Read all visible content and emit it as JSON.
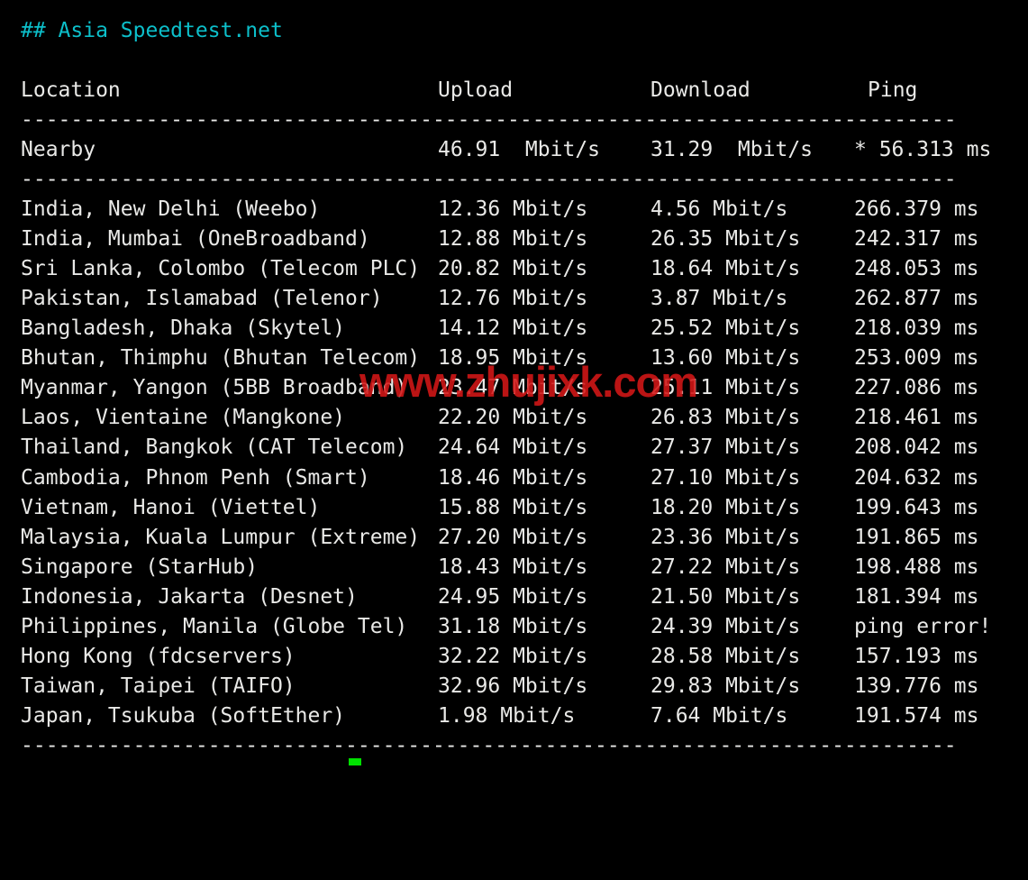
{
  "title": "## Asia Speedtest.net",
  "table": {
    "headers": {
      "location": "Location",
      "upload": "Upload",
      "download": "Download",
      "ping": "Ping"
    },
    "separator": "---------------------------------------------------------------------------",
    "nearby": {
      "location": "Nearby",
      "upload": "46.91  Mbit/s",
      "download": "31.29  Mbit/s",
      "ping": "* 56.313 ms"
    },
    "rows": [
      {
        "location": "India, New Delhi (Weebo)",
        "upload": "12.36 Mbit/s",
        "download": "4.56 Mbit/s",
        "ping": "266.379 ms"
      },
      {
        "location": "India, Mumbai (OneBroadband)",
        "upload": "12.88 Mbit/s",
        "download": "26.35 Mbit/s",
        "ping": "242.317 ms"
      },
      {
        "location": "Sri Lanka, Colombo (Telecom PLC)",
        "upload": "20.82 Mbit/s",
        "download": "18.64 Mbit/s",
        "ping": "248.053 ms"
      },
      {
        "location": "Pakistan, Islamabad (Telenor)",
        "upload": "12.76 Mbit/s",
        "download": "3.87 Mbit/s",
        "ping": "262.877 ms"
      },
      {
        "location": "Bangladesh, Dhaka (Skytel)",
        "upload": "14.12 Mbit/s",
        "download": "25.52 Mbit/s",
        "ping": "218.039 ms"
      },
      {
        "location": "Bhutan, Thimphu (Bhutan Telecom)",
        "upload": "18.95 Mbit/s",
        "download": "13.60 Mbit/s",
        "ping": "253.009 ms"
      },
      {
        "location": "Myanmar, Yangon (5BB Broadband)",
        "upload": "23.47 Mbit/s",
        "download": "25.11 Mbit/s",
        "ping": "227.086 ms"
      },
      {
        "location": "Laos, Vientaine (Mangkone)",
        "upload": "22.20 Mbit/s",
        "download": "26.83 Mbit/s",
        "ping": "218.461 ms"
      },
      {
        "location": "Thailand, Bangkok (CAT Telecom)",
        "upload": "24.64 Mbit/s",
        "download": "27.37 Mbit/s",
        "ping": "208.042 ms"
      },
      {
        "location": "Cambodia, Phnom Penh (Smart)",
        "upload": "18.46 Mbit/s",
        "download": "27.10 Mbit/s",
        "ping": "204.632 ms"
      },
      {
        "location": "Vietnam, Hanoi (Viettel)",
        "upload": "15.88 Mbit/s",
        "download": "18.20 Mbit/s",
        "ping": "199.643 ms"
      },
      {
        "location": "Malaysia, Kuala Lumpur (Extreme)",
        "upload": "27.20 Mbit/s",
        "download": "23.36 Mbit/s",
        "ping": "191.865 ms"
      },
      {
        "location": "Singapore (StarHub)",
        "upload": "18.43 Mbit/s",
        "download": "27.22 Mbit/s",
        "ping": "198.488 ms"
      },
      {
        "location": "Indonesia, Jakarta (Desnet)",
        "upload": "24.95 Mbit/s",
        "download": "21.50 Mbit/s",
        "ping": "181.394 ms"
      },
      {
        "location": "Philippines, Manila (Globe Tel)",
        "upload": "31.18 Mbit/s",
        "download": "24.39 Mbit/s",
        "ping": "ping error!"
      },
      {
        "location": "Hong Kong (fdcservers)",
        "upload": "32.22 Mbit/s",
        "download": "28.58 Mbit/s",
        "ping": "157.193 ms"
      },
      {
        "location": "Taiwan, Taipei (TAIFO)",
        "upload": "32.96 Mbit/s",
        "download": "29.83 Mbit/s",
        "ping": "139.776 ms"
      },
      {
        "location": "Japan, Tsukuba (SoftEther)",
        "upload": "1.98 Mbit/s",
        "download": "7.64 Mbit/s",
        "ping": "191.574 ms"
      }
    ]
  },
  "watermark": {
    "text": "www.zhujixk.com",
    "color": "#d41717"
  },
  "colors": {
    "background": "#000000",
    "text": "#e9e9e7",
    "title": "#0cbfca",
    "cursor": "#00e100"
  }
}
